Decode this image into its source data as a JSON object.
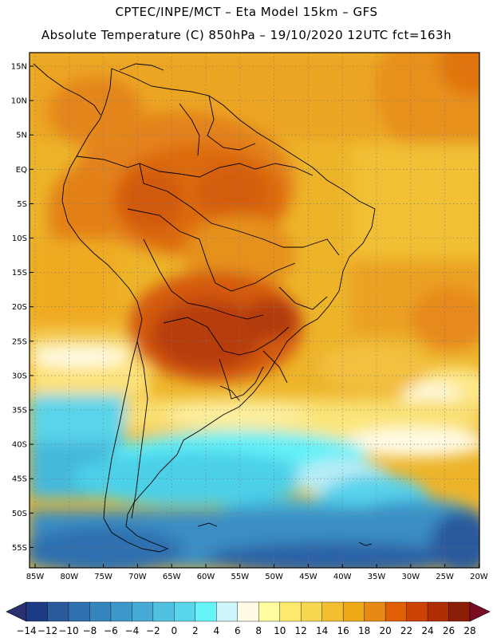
{
  "header": {
    "line1": "CPTEC/INPE/MCT –  Eta Model 15km – GFS",
    "line2": "Absolute Temperature (C) 850hPa – 19/10/2020 12UTC fct=163h"
  },
  "map": {
    "region": "South America",
    "lat_labels": [
      "15N",
      "10N",
      "5N",
      "EQ",
      "5S",
      "10S",
      "15S",
      "20S",
      "25S",
      "30S",
      "35S",
      "40S",
      "45S",
      "50S",
      "55S"
    ],
    "lon_labels": [
      "85W",
      "80W",
      "75W",
      "70W",
      "65W",
      "60W",
      "55W",
      "50W",
      "45W",
      "40W",
      "35W",
      "30W",
      "25W",
      "20W"
    ]
  },
  "colorbar": {
    "labels": [
      "-14",
      "-12",
      "-10",
      "-8",
      "-6",
      "-4",
      "-2",
      "0",
      "2",
      "4",
      "6",
      "8",
      "10",
      "12",
      "14",
      "16",
      "18",
      "20",
      "22",
      "24",
      "26",
      "28"
    ],
    "colors": [
      "#1c3a85",
      "#2a5a9c",
      "#2f70b0",
      "#3585be",
      "#3b98c8",
      "#46aad4",
      "#52c0e0",
      "#5ad6ea",
      "#66f4f8",
      "#cff6fb",
      "#fffbe6",
      "#fffca0",
      "#fde96c",
      "#f7d650",
      "#f2bf33",
      "#efa915",
      "#e78a14",
      "#e05e06",
      "#cc4205",
      "#b02e05",
      "#8c1e07"
    ],
    "low_color": "#2b3170",
    "high_color": "#7a0d24"
  }
}
